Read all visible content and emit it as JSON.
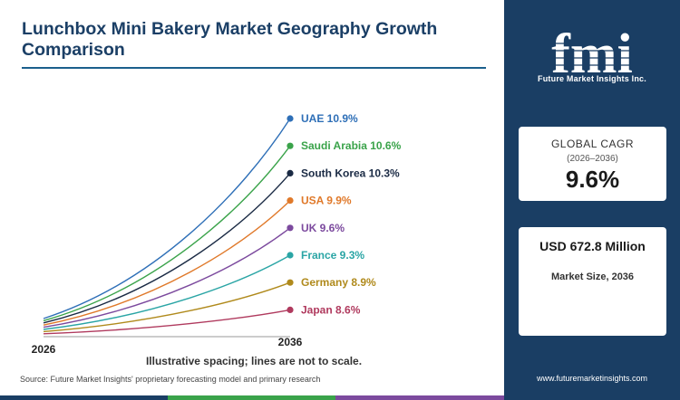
{
  "page": {
    "title": "Lunchbox Mini Bakery Market Geography Growth Comparison",
    "note": "Illustrative spacing; lines are not to scale.",
    "source": "Source: Future Market Insights' proprietary forecasting model and primary research",
    "website": "www.futuremarketinsights.com"
  },
  "logo": {
    "mark": "fmi",
    "text": "Future Market Insights Inc."
  },
  "cagr": {
    "label": "GLOBAL CAGR",
    "period": "(2026–2036)",
    "value": "9.6%"
  },
  "market_size": {
    "value": "USD 672.8 Million",
    "label": "Market Size, 2036"
  },
  "chart_data": {
    "type": "line",
    "x": [
      "2026",
      "2036"
    ],
    "series": [
      {
        "name": "UAE",
        "cagr": 10.9,
        "label": "UAE 10.9%",
        "color": "#2e6fb7"
      },
      {
        "name": "Saudi Arabia",
        "cagr": 10.6,
        "label": "Saudi Arabia 10.6%",
        "color": "#3aa34a"
      },
      {
        "name": "South Korea",
        "cagr": 10.3,
        "label": "South Korea 10.3%",
        "color": "#1a2a44"
      },
      {
        "name": "USA",
        "cagr": 9.9,
        "label": "USA 9.9%",
        "color": "#e0792a"
      },
      {
        "name": "UK",
        "cagr": 9.6,
        "label": "UK 9.6%",
        "color": "#7c4a9e"
      },
      {
        "name": "France",
        "cagr": 9.3,
        "label": "France 9.3%",
        "color": "#2aa5a5"
      },
      {
        "name": "Germany",
        "cagr": 8.9,
        "label": "Germany 8.9%",
        "color": "#b08a1c"
      },
      {
        "name": "Japan",
        "cagr": 8.6,
        "label": "Japan 8.6%",
        "color": "#b03a5e"
      }
    ],
    "grid": false,
    "legend": "end-labels"
  },
  "colors": {
    "panel": "#1a3e64",
    "title": "#1b3f66",
    "strip": [
      "#1a3e64",
      "#3aa34a",
      "#7c4a9e"
    ]
  }
}
